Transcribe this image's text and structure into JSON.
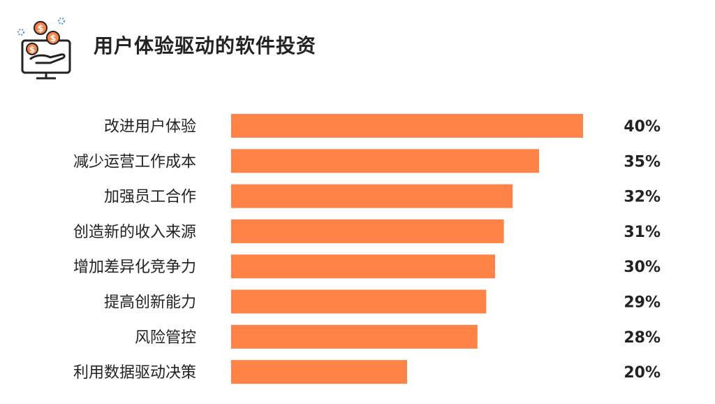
{
  "title": "用户体验驱动的软件投资",
  "colors": {
    "bar": "#ff8247",
    "text": "#222222",
    "icon_orange": "#ff8247",
    "icon_blue": "#4a90e2",
    "icon_line": "#222222"
  },
  "icons": {
    "logo": "monitor-hand-coins-icon"
  },
  "chart_data": {
    "type": "bar",
    "orientation": "horizontal",
    "categories": [
      "改进用户体验",
      "减少运营工作成本",
      "加强员工合作",
      "创造新的收入来源",
      "增加差异化竞争力",
      "提高创新能力",
      "风险管控",
      "利用数据驱动决策"
    ],
    "values": [
      40,
      35,
      32,
      31,
      30,
      29,
      28,
      20
    ],
    "value_labels": [
      "40%",
      "35%",
      "32%",
      "31%",
      "30%",
      "29%",
      "28%",
      "20%"
    ],
    "unit": "%",
    "xlim": [
      0,
      40
    ],
    "grid": false,
    "legend": "none"
  }
}
